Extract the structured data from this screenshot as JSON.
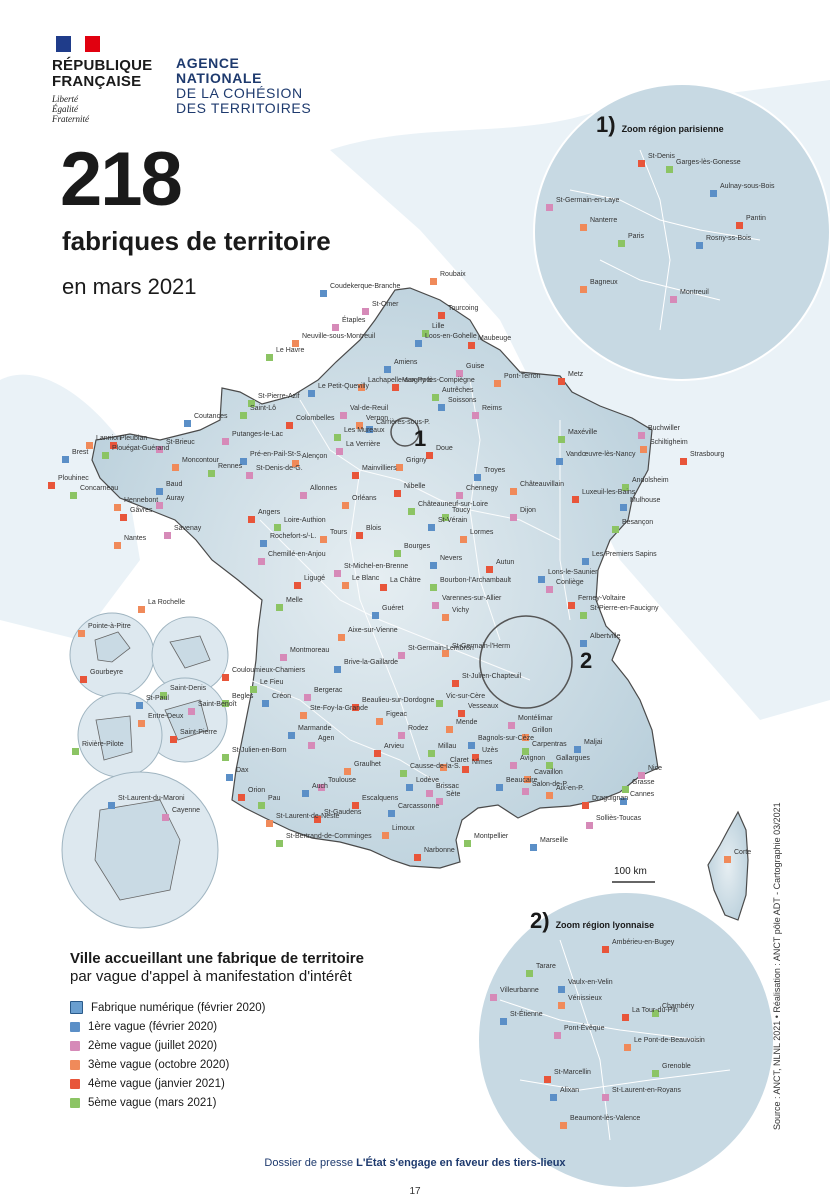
{
  "header": {
    "rf_title": "RÉPUBLIQUE FRANÇAISE",
    "rf_motto": [
      "Liberté",
      "Égalité",
      "Fraternité"
    ],
    "agency_lines": [
      "AGENCE",
      "NATIONALE",
      "DE LA COHÉSION",
      "DES TERRITOIRES"
    ]
  },
  "title": {
    "number": "218",
    "subtitle": "fabriques de territoire",
    "date": "en mars 2021"
  },
  "zooms": {
    "paris": {
      "num": "1)",
      "title": "Zoom région parisienne",
      "marker": "1"
    },
    "lyon": {
      "num": "2)",
      "title": "Zoom région lyonnaise",
      "marker": "2"
    }
  },
  "scale": "100 km",
  "legend": {
    "title": "Ville accueillant une fabrique de territoire",
    "subtitle": "par vague d'appel à manifestation d'intérêt",
    "items": [
      {
        "label": "Fabrique numérique (février 2020)",
        "color": "#5b8fc7",
        "type": "big"
      },
      {
        "label": "1ère vague (février 2020)",
        "color": "#5b8fc7",
        "type": "small"
      },
      {
        "label": "2ème vague (juillet 2020)",
        "color": "#d68ab8",
        "type": "small"
      },
      {
        "label": "3ème vague (octobre 2020)",
        "color": "#f08a5a",
        "type": "small"
      },
      {
        "label": "4ème vague (janvier 2021)",
        "color": "#e8553a",
        "type": "small"
      },
      {
        "label": "5ème vague (mars 2021)",
        "color": "#8cc464",
        "type": "small"
      }
    ]
  },
  "footer": {
    "prefix": "Dossier de presse",
    "title": "L'État s'engage en faveur des tiers-lieux",
    "page": "17"
  },
  "source": "Source : ANCT, NLNL 2021 • Réalisation : ANCT pôle ADT - Cartographie 03/2021",
  "colors": {
    "land": "#d4e2ea",
    "sea": "#e8f1f6",
    "border": "#555555"
  },
  "cities": [
    {
      "name": "Coudekerque-Branche"
    },
    {
      "name": "St-Omer"
    },
    {
      "name": "Roubaix"
    },
    {
      "name": "Tourcoing"
    },
    {
      "name": "Lille"
    },
    {
      "name": "Loos-en-Gohelle"
    },
    {
      "name": "Étaples"
    },
    {
      "name": "Neuville-sous-Montreuil"
    },
    {
      "name": "Maubeuge"
    },
    {
      "name": "Le Havre"
    },
    {
      "name": "Amiens"
    },
    {
      "name": "Guise"
    },
    {
      "name": "Lachapelle-aux-Pots"
    },
    {
      "name": "Margny-lès-Compiègne"
    },
    {
      "name": "Autrêches"
    },
    {
      "name": "Soissons"
    },
    {
      "name": "Reims"
    },
    {
      "name": "Pont-Terron"
    },
    {
      "name": "Metz"
    },
    {
      "name": "St-Pierre-Azif"
    },
    {
      "name": "Le Petit-Quevilly"
    },
    {
      "name": "Val-de-Reuil"
    },
    {
      "name": "Vernon"
    },
    {
      "name": "Colombelles"
    },
    {
      "name": "Les Mureaux"
    },
    {
      "name": "Carrières-sous-P."
    },
    {
      "name": "La Verrière"
    },
    {
      "name": "Grigny"
    },
    {
      "name": "Doue"
    },
    {
      "name": "Saint-Lô"
    },
    {
      "name": "Coutances"
    },
    {
      "name": "Putanges-le-Lac"
    },
    {
      "name": "Lannion"
    },
    {
      "name": "Pleubian"
    },
    {
      "name": "Plouégat-Guérand"
    },
    {
      "name": "Brest"
    },
    {
      "name": "St-Brieuc"
    },
    {
      "name": "Moncontour"
    },
    {
      "name": "Plouhinec"
    },
    {
      "name": "Concarneau"
    },
    {
      "name": "Baud"
    },
    {
      "name": "Auray"
    },
    {
      "name": "Hennebont"
    },
    {
      "name": "Gâvres"
    },
    {
      "name": "Rennes"
    },
    {
      "name": "Pré-en-Pail-St-S."
    },
    {
      "name": "St-Denis-de-G."
    },
    {
      "name": "Alençon"
    },
    {
      "name": "Mainvilliers"
    },
    {
      "name": "Maxéville"
    },
    {
      "name": "Vandœuvre-lès-Nancy"
    },
    {
      "name": "Buchwiller"
    },
    {
      "name": "Schiltigheim"
    },
    {
      "name": "Strasbourg"
    },
    {
      "name": "Andolsheim"
    },
    {
      "name": "Mulhouse"
    },
    {
      "name": "Allonnes"
    },
    {
      "name": "Orléans"
    },
    {
      "name": "Nibelle"
    },
    {
      "name": "Châteauneuf-sur-Loire"
    },
    {
      "name": "Troyes"
    },
    {
      "name": "Chennegy"
    },
    {
      "name": "Châteauvillain"
    },
    {
      "name": "Luxeuil-les-Bains"
    },
    {
      "name": "Toucy"
    },
    {
      "name": "St-Vérain"
    },
    {
      "name": "Dijon"
    },
    {
      "name": "Lormes"
    },
    {
      "name": "Autun"
    },
    {
      "name": "Besançon"
    },
    {
      "name": "Les Premiers Sapins"
    },
    {
      "name": "Savenay"
    },
    {
      "name": "Nantes"
    },
    {
      "name": "Angers"
    },
    {
      "name": "Loire-Authion"
    },
    {
      "name": "Rochefort-s/-L."
    },
    {
      "name": "Chemillé-en-Anjou"
    },
    {
      "name": "Tours"
    },
    {
      "name": "Blois"
    },
    {
      "name": "Bourges"
    },
    {
      "name": "Nevers"
    },
    {
      "name": "St-Michel-en-Brenne"
    },
    {
      "name": "Le Blanc"
    },
    {
      "name": "La Châtre"
    },
    {
      "name": "Bourbon-l'Archambault"
    },
    {
      "name": "Lons-le-Saunier"
    },
    {
      "name": "Conliège"
    },
    {
      "name": "La Rochelle"
    },
    {
      "name": "Ligugé"
    },
    {
      "name": "Melle"
    },
    {
      "name": "Guéret"
    },
    {
      "name": "Varennes-sur-Allier"
    },
    {
      "name": "Vichy"
    },
    {
      "name": "Ferney-Voltaire"
    },
    {
      "name": "St-Pierre-en-Faucigny"
    },
    {
      "name": "Albertville"
    },
    {
      "name": "Montmoreau"
    },
    {
      "name": "Aixe-sur-Vienne"
    },
    {
      "name": "Couloumieux-Chamiers"
    },
    {
      "name": "Le Fieu"
    },
    {
      "name": "Brive-la-Gaillarde"
    },
    {
      "name": "St-Germain-Lembron"
    },
    {
      "name": "St-Germain-l'Herm"
    },
    {
      "name": "St-Julien-Chapteuil"
    },
    {
      "name": "Begles"
    },
    {
      "name": "Créon"
    },
    {
      "name": "Bergerac"
    },
    {
      "name": "Ste-Foy-la-Grande"
    },
    {
      "name": "Beaulieu-sur-Dordogne"
    },
    {
      "name": "Vic-sur-Cère"
    },
    {
      "name": "Marmande"
    },
    {
      "name": "Agen"
    },
    {
      "name": "Figeac"
    },
    {
      "name": "Vesseaux"
    },
    {
      "name": "St-Julien-en-Born"
    },
    {
      "name": "Dax"
    },
    {
      "name": "Rodez"
    },
    {
      "name": "Mende"
    },
    {
      "name": "Arvieu"
    },
    {
      "name": "Millau"
    },
    {
      "name": "Bagnols-sur-Cèze"
    },
    {
      "name": "Montélimar"
    },
    {
      "name": "Grillon"
    },
    {
      "name": "Uzès"
    },
    {
      "name": "Carpentras"
    },
    {
      "name": "Maljai"
    },
    {
      "name": "Avignon"
    },
    {
      "name": "Cavaillon"
    },
    {
      "name": "Nîmes"
    },
    {
      "name": "Gallargues"
    },
    {
      "name": "Beaucaire"
    },
    {
      "name": "Salon-de-P."
    },
    {
      "name": "Aix-en-P."
    },
    {
      "name": "Draguignan"
    },
    {
      "name": "Grasse"
    },
    {
      "name": "Cannes"
    },
    {
      "name": "Nice"
    },
    {
      "name": "Claret"
    },
    {
      "name": "Orion"
    },
    {
      "name": "Pau"
    },
    {
      "name": "Auch"
    },
    {
      "name": "Toulouse"
    },
    {
      "name": "Graulhet"
    },
    {
      "name": "Escalquens"
    },
    {
      "name": "Causse-de-la-S."
    },
    {
      "name": "Lodève"
    },
    {
      "name": "Brissac"
    },
    {
      "name": "St-Laurent-de-Neste"
    },
    {
      "name": "St-Gaudens"
    },
    {
      "name": "St-Bertrand-de-Comminges"
    },
    {
      "name": "Carcassonne"
    },
    {
      "name": "Sète"
    },
    {
      "name": "Limoux"
    },
    {
      "name": "Narbonne"
    },
    {
      "name": "Montpellier"
    },
    {
      "name": "Marseille"
    },
    {
      "name": "Solliès-Toucas"
    },
    {
      "name": "Pointe-à-Pitre"
    },
    {
      "name": "Gourbeyre"
    },
    {
      "name": "Saint-Denis"
    },
    {
      "name": "St-Paul"
    },
    {
      "name": "Saint-Benoît"
    },
    {
      "name": "Entre-Deux"
    },
    {
      "name": "Saint-Pierre"
    },
    {
      "name": "Rivière-Pilote"
    },
    {
      "name": "St-Laurent-du-Maroni"
    },
    {
      "name": "Cayenne"
    },
    {
      "name": "Corte"
    },
    {
      "name": "St-Denis"
    },
    {
      "name": "Garges-lès-Gonesse"
    },
    {
      "name": "Aulnay-sous-Bois"
    },
    {
      "name": "St-Germain-en-Laye"
    },
    {
      "name": "Nanterre"
    },
    {
      "name": "Pantin"
    },
    {
      "name": "Paris"
    },
    {
      "name": "Rosny-ss-Bois"
    },
    {
      "name": "Montreuil"
    },
    {
      "name": "Bagneux"
    },
    {
      "name": "Ambérieu-en-Bugey"
    },
    {
      "name": "Tarare"
    },
    {
      "name": "Vaulx-en-Velin"
    },
    {
      "name": "Villeurbanne"
    },
    {
      "name": "Vénissieux"
    },
    {
      "name": "La Tour-du-Pin"
    },
    {
      "name": "Chambéry"
    },
    {
      "name": "St-Étienne"
    },
    {
      "name": "Pont-Évêque"
    },
    {
      "name": "Le Pont-de-Beauvoisin"
    },
    {
      "name": "St-Marcellin"
    },
    {
      "name": "Grenoble"
    },
    {
      "name": "Alixan"
    },
    {
      "name": "St-Laurent-en-Royans"
    },
    {
      "name": "Beaumont-lès-Valence"
    }
  ]
}
